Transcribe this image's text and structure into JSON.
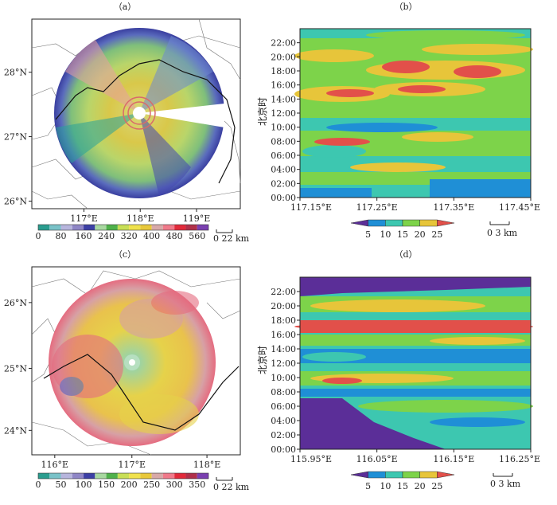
{
  "figure": {
    "panels": [
      {
        "id": "a",
        "title": "（a）"
      },
      {
        "id": "b",
        "title": "（b）"
      },
      {
        "id": "c",
        "title": "（c）"
      },
      {
        "id": "d",
        "title": "（d）"
      }
    ]
  },
  "chart_data": [
    {
      "panel": "a",
      "type": "heatmap",
      "description_kind": "radar map",
      "x_ticks": [
        "117°E",
        "118°E",
        "119°E"
      ],
      "y_ticks": [
        "26°N",
        "27°N",
        "28°N"
      ],
      "colorbar_ticks": [
        "0",
        "80",
        "160",
        "240",
        "320",
        "400",
        "480",
        "560"
      ],
      "colorbar_colors": [
        "#2a9d8f",
        "#79c2c8",
        "#b7b5dd",
        "#8f86c6",
        "#3c3fa5",
        "#a8d8a0",
        "#4fb14a",
        "#c8df56",
        "#f0e24c",
        "#e8c83a",
        "#d8a9a8",
        "#f07a8a",
        "#e22a3a",
        "#b0304a",
        "#7a3fb0"
      ],
      "scale_label": "0  22 km"
    },
    {
      "panel": "b",
      "type": "heatmap",
      "ylabel": "北京时",
      "x_ticks": [
        "117.15°E",
        "117.25°E",
        "117.35°E",
        "117.45°E"
      ],
      "y_ticks": [
        "00:00",
        "02:00",
        "04:00",
        "06:00",
        "08:00",
        "10:00",
        "12:00",
        "14:00",
        "16:00",
        "18:00",
        "20:00",
        "22:00"
      ],
      "colorbar_ticks": [
        "5",
        "10",
        "15",
        "20",
        "25"
      ],
      "colorbar_colors": [
        "#5b2e98",
        "#1f8fd6",
        "#3dc7b0",
        "#7dd34a",
        "#e7c53a",
        "#e2504a"
      ],
      "scale_label": "0  3 km"
    },
    {
      "panel": "c",
      "type": "heatmap",
      "description_kind": "radar map",
      "x_ticks": [
        "116°E",
        "117°E",
        "118°E"
      ],
      "y_ticks": [
        "24°N",
        "25°N",
        "26°N"
      ],
      "colorbar_ticks": [
        "0",
        "50",
        "100",
        "150",
        "200",
        "250",
        "300",
        "350"
      ],
      "colorbar_colors": [
        "#2a9d8f",
        "#79c2c8",
        "#b7b5dd",
        "#8f86c6",
        "#3c3fa5",
        "#a8d8a0",
        "#4fb14a",
        "#c8df56",
        "#f0e24c",
        "#e8c83a",
        "#d8a9a8",
        "#f07a8a",
        "#e22a3a",
        "#b0304a",
        "#7a3fb0"
      ],
      "scale_label": "0  22 km"
    },
    {
      "panel": "d",
      "type": "heatmap",
      "ylabel": "北京时",
      "x_ticks": [
        "115.95°E",
        "116.05°E",
        "116.15°E",
        "116.25°E"
      ],
      "y_ticks": [
        "00:00",
        "02:00",
        "04:00",
        "06:00",
        "08:00",
        "10:00",
        "12:00",
        "14:00",
        "16:00",
        "18:00",
        "20:00",
        "22:00"
      ],
      "colorbar_ticks": [
        "5",
        "10",
        "15",
        "20",
        "25"
      ],
      "colorbar_colors": [
        "#5b2e98",
        "#1f8fd6",
        "#3dc7b0",
        "#7dd34a",
        "#e7c53a",
        "#e2504a"
      ],
      "scale_label": "0  3 km"
    }
  ]
}
